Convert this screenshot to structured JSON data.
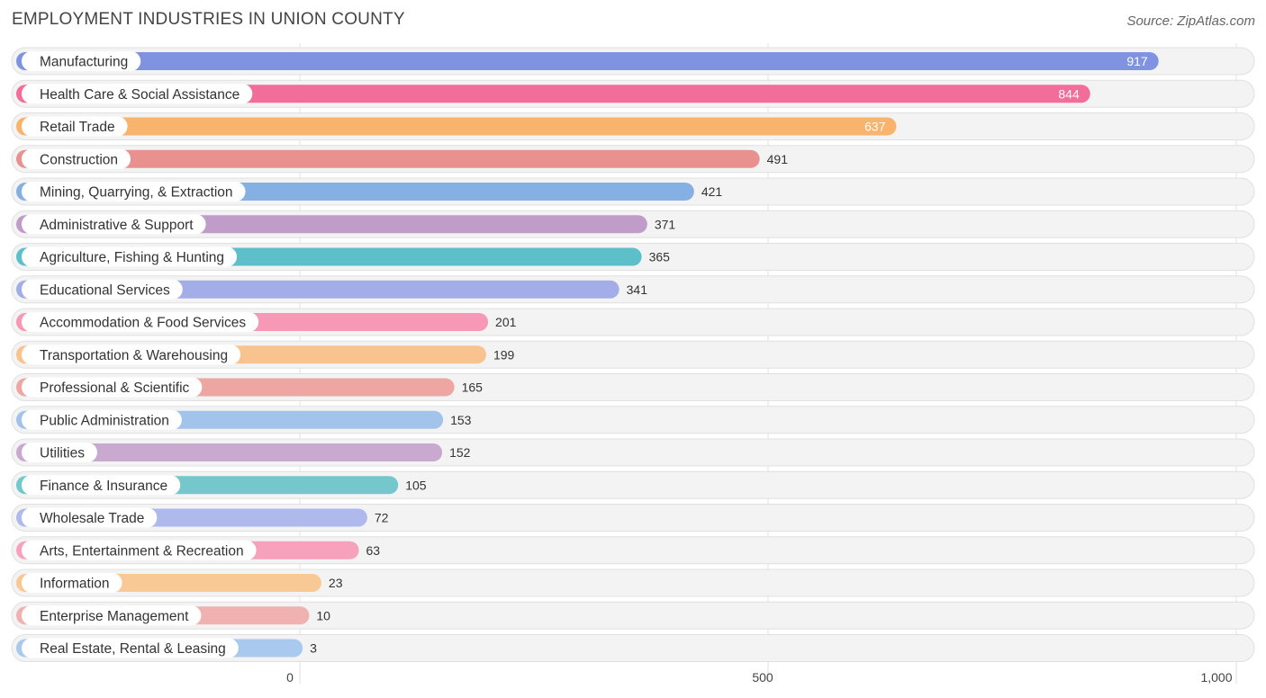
{
  "chart_data": {
    "type": "bar",
    "orientation": "horizontal",
    "title": "EMPLOYMENT INDUSTRIES IN UNION COUNTY",
    "source": "Source: ZipAtlas.com",
    "categories": [
      "Manufacturing",
      "Health Care & Social Assistance",
      "Retail Trade",
      "Construction",
      "Mining, Quarrying, & Extraction",
      "Administrative & Support",
      "Agriculture, Fishing & Hunting",
      "Educational Services",
      "Accommodation & Food Services",
      "Transportation & Warehousing",
      "Professional & Scientific",
      "Public Administration",
      "Utilities",
      "Finance & Insurance",
      "Wholesale Trade",
      "Arts, Entertainment & Recreation",
      "Information",
      "Enterprise Management",
      "Real Estate, Rental & Leasing"
    ],
    "values": [
      917,
      844,
      637,
      491,
      421,
      371,
      365,
      341,
      201,
      199,
      165,
      153,
      152,
      105,
      72,
      63,
      23,
      10,
      3
    ],
    "value_labels": [
      "917",
      "844",
      "637",
      "491",
      "421",
      "371",
      "365",
      "341",
      "201",
      "199",
      "165",
      "153",
      "152",
      "105",
      "72",
      "63",
      "23",
      "10",
      "3"
    ],
    "colors": [
      "#7f93e0",
      "#f26d9a",
      "#f8b36c",
      "#e8918f",
      "#86b0e4",
      "#c09dc9",
      "#5dbfc9",
      "#a3aee8",
      "#f798b6",
      "#f9c38f",
      "#eda6a2",
      "#a2c3ea",
      "#c9a9d0",
      "#74c8cc",
      "#b0b9ec",
      "#f6a2bd",
      "#f9c995",
      "#efb2b0",
      "#a9c9ee"
    ],
    "xlim": [
      0,
      1000
    ],
    "xticks": [
      0,
      500,
      1000
    ],
    "xtick_labels": [
      "0",
      "500",
      "1,000"
    ],
    "grid": true
  }
}
